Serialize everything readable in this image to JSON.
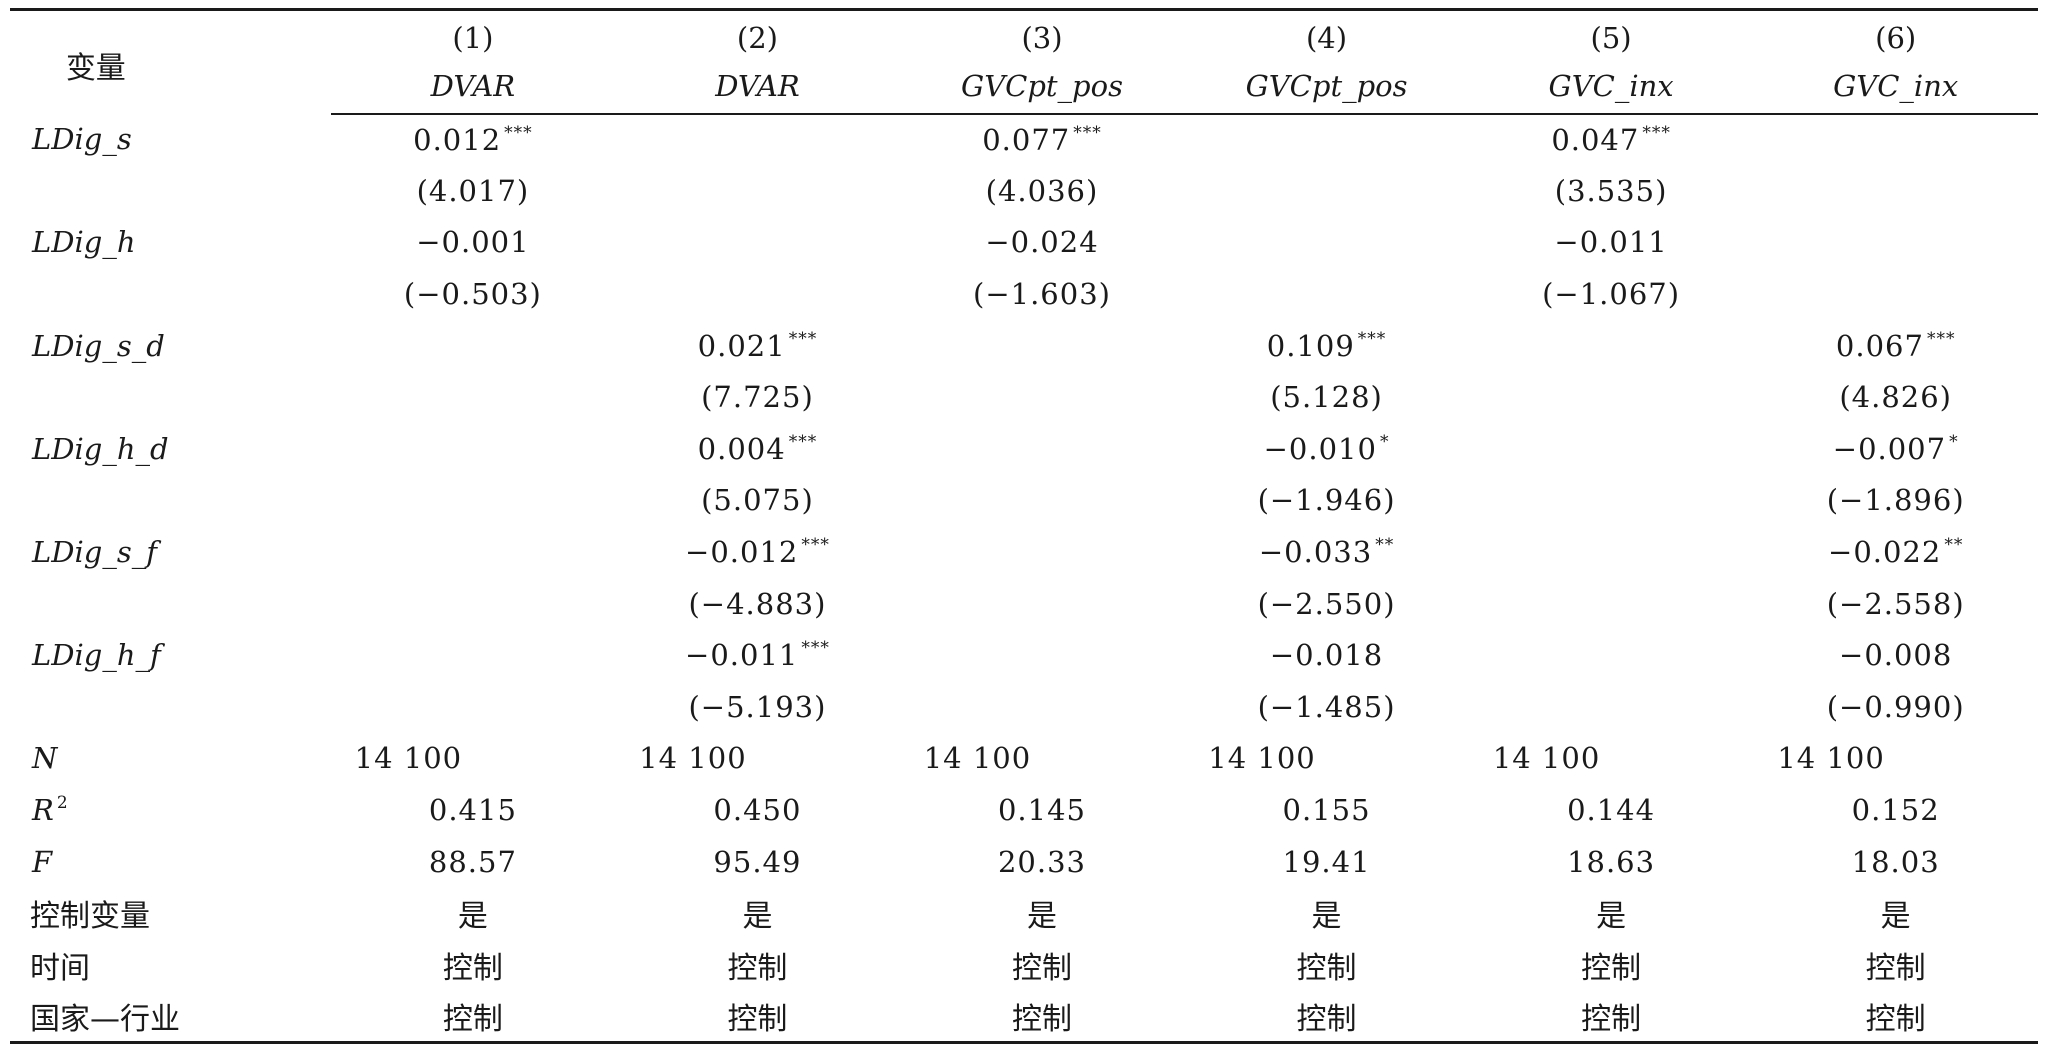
{
  "header": {
    "variable_label": "变量",
    "columns": [
      {
        "num": "(1)",
        "dep": "DVAR"
      },
      {
        "num": "(2)",
        "dep": "DVAR"
      },
      {
        "num": "(3)",
        "dep": "GVCpt_pos"
      },
      {
        "num": "(4)",
        "dep": "GVCpt_pos"
      },
      {
        "num": "(5)",
        "dep": "GVC_inx"
      },
      {
        "num": "(6)",
        "dep": "GVC_inx"
      }
    ]
  },
  "rows": [
    {
      "label": "LDig_s",
      "type": "coef",
      "cells": [
        {
          "v": "0.012",
          "s": "***"
        },
        {
          "v": "",
          "s": ""
        },
        {
          "v": "0.077",
          "s": "***"
        },
        {
          "v": "",
          "s": ""
        },
        {
          "v": "0.047",
          "s": "***"
        },
        {
          "v": "",
          "s": ""
        }
      ]
    },
    {
      "label": "",
      "type": "t",
      "cells": [
        {
          "v": "(4.017)"
        },
        {
          "v": ""
        },
        {
          "v": "(4.036)"
        },
        {
          "v": ""
        },
        {
          "v": "(3.535)"
        },
        {
          "v": ""
        }
      ]
    },
    {
      "label": "LDig_h",
      "type": "coef",
      "cells": [
        {
          "v": "−0.001",
          "s": ""
        },
        {
          "v": "",
          "s": ""
        },
        {
          "v": "−0.024",
          "s": ""
        },
        {
          "v": "",
          "s": ""
        },
        {
          "v": "−0.011",
          "s": ""
        },
        {
          "v": "",
          "s": ""
        }
      ]
    },
    {
      "label": "",
      "type": "t",
      "cells": [
        {
          "v": "(−0.503)"
        },
        {
          "v": ""
        },
        {
          "v": "(−1.603)"
        },
        {
          "v": ""
        },
        {
          "v": "(−1.067)"
        },
        {
          "v": ""
        }
      ]
    },
    {
      "label": "LDig_s_d",
      "type": "coef",
      "cells": [
        {
          "v": "",
          "s": ""
        },
        {
          "v": "0.021",
          "s": "***"
        },
        {
          "v": "",
          "s": ""
        },
        {
          "v": "0.109",
          "s": "***"
        },
        {
          "v": "",
          "s": ""
        },
        {
          "v": "0.067",
          "s": "***"
        }
      ]
    },
    {
      "label": "",
      "type": "t",
      "cells": [
        {
          "v": ""
        },
        {
          "v": "(7.725)"
        },
        {
          "v": ""
        },
        {
          "v": "(5.128)"
        },
        {
          "v": ""
        },
        {
          "v": "(4.826)"
        }
      ]
    },
    {
      "label": "LDig_h_d",
      "type": "coef",
      "cells": [
        {
          "v": "",
          "s": ""
        },
        {
          "v": "0.004",
          "s": "***"
        },
        {
          "v": "",
          "s": ""
        },
        {
          "v": "−0.010",
          "s": "*"
        },
        {
          "v": "",
          "s": ""
        },
        {
          "v": "−0.007",
          "s": "*"
        }
      ]
    },
    {
      "label": "",
      "type": "t",
      "cells": [
        {
          "v": ""
        },
        {
          "v": "(5.075)"
        },
        {
          "v": ""
        },
        {
          "v": "(−1.946)"
        },
        {
          "v": ""
        },
        {
          "v": "(−1.896)"
        }
      ]
    },
    {
      "label": "LDig_s_f",
      "type": "coef",
      "cells": [
        {
          "v": "",
          "s": ""
        },
        {
          "v": "−0.012",
          "s": "***"
        },
        {
          "v": "",
          "s": ""
        },
        {
          "v": "−0.033",
          "s": "**"
        },
        {
          "v": "",
          "s": ""
        },
        {
          "v": "−0.022",
          "s": "**"
        }
      ]
    },
    {
      "label": "",
      "type": "t",
      "cells": [
        {
          "v": ""
        },
        {
          "v": "(−4.883)"
        },
        {
          "v": ""
        },
        {
          "v": "(−2.550)"
        },
        {
          "v": ""
        },
        {
          "v": "(−2.558)"
        }
      ]
    },
    {
      "label": "LDig_h_f",
      "type": "coef",
      "cells": [
        {
          "v": "",
          "s": ""
        },
        {
          "v": "−0.011",
          "s": "***"
        },
        {
          "v": "",
          "s": ""
        },
        {
          "v": "−0.018",
          "s": ""
        },
        {
          "v": "",
          "s": ""
        },
        {
          "v": "−0.008",
          "s": ""
        }
      ]
    },
    {
      "label": "",
      "type": "t",
      "cells": [
        {
          "v": ""
        },
        {
          "v": "(−5.193)"
        },
        {
          "v": ""
        },
        {
          "v": "(−1.485)"
        },
        {
          "v": ""
        },
        {
          "v": "(−0.990)"
        }
      ]
    }
  ],
  "stats": {
    "n": {
      "label": "N",
      "values": [
        "14 100",
        "14 100",
        "14 100",
        "14 100",
        "14 100",
        "14 100"
      ]
    },
    "r2": {
      "label": "R",
      "sup": "2",
      "values": [
        "0.415",
        "0.450",
        "0.145",
        "0.155",
        "0.144",
        "0.152"
      ]
    },
    "f": {
      "label": "F",
      "values": [
        "88.57",
        "95.49",
        "20.33",
        "19.41",
        "18.63",
        "18.03"
      ]
    }
  },
  "controls": [
    {
      "label": "控制变量",
      "values": [
        "是",
        "是",
        "是",
        "是",
        "是",
        "是"
      ]
    },
    {
      "label": "时间",
      "values": [
        "控制",
        "控制",
        "控制",
        "控制",
        "控制",
        "控制"
      ]
    },
    {
      "label": "国家—行业",
      "values": [
        "控制",
        "控制",
        "控制",
        "控制",
        "控制",
        "控制"
      ]
    }
  ]
}
